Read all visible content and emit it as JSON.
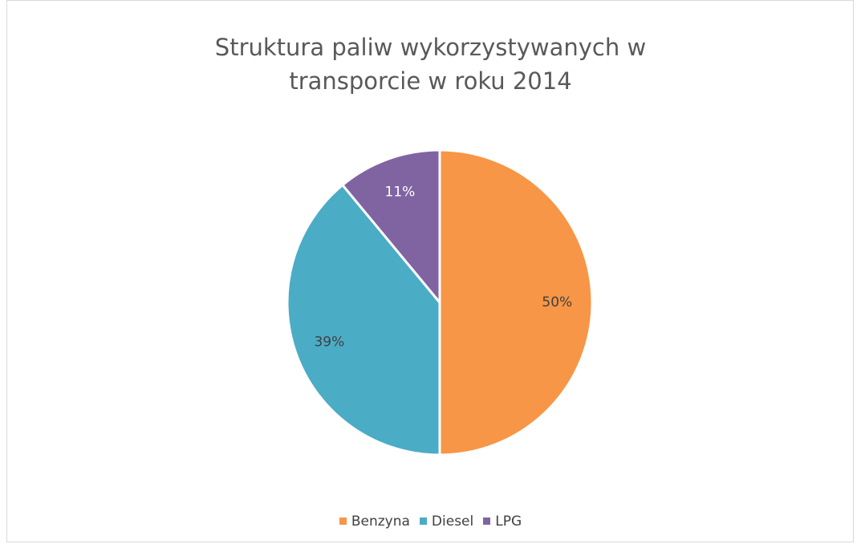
{
  "chart_data": {
    "type": "pie",
    "title": "Struktura paliw wykorzystywanych w transporcie w roku 2014",
    "categories": [
      "Benzyna",
      "Diesel",
      "LPG"
    ],
    "values": [
      50,
      39,
      11
    ],
    "value_labels": [
      "50%",
      "39%",
      "11%"
    ],
    "colors": [
      "#f79646",
      "#4bacc6",
      "#8064a2"
    ],
    "label_colors": [
      "#404040",
      "#404040",
      "#ffffff"
    ],
    "legend": "bottom"
  }
}
